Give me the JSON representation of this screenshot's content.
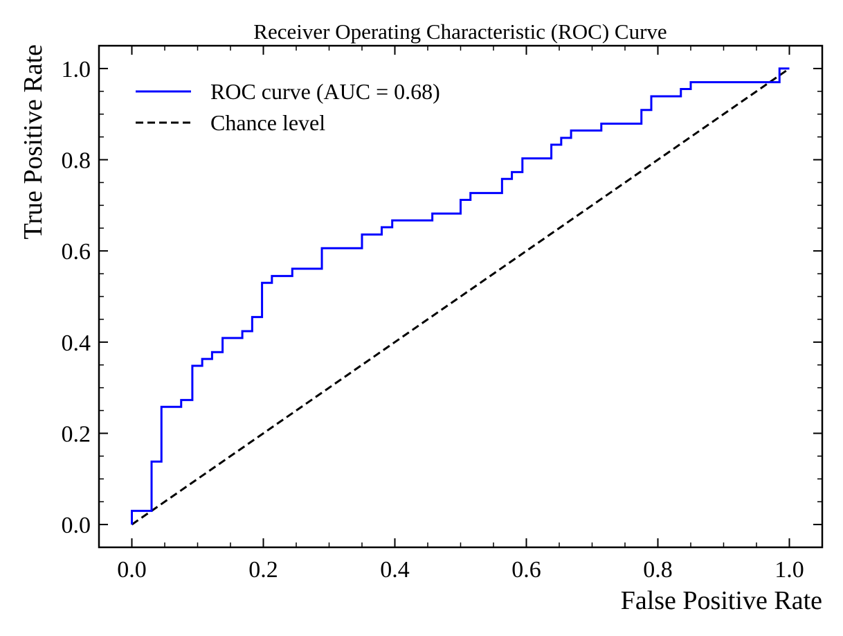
{
  "chart_data": {
    "type": "line",
    "title": "Receiver Operating Characteristic (ROC) Curve",
    "xlabel": "False Positive Rate",
    "ylabel": "True Positive Rate",
    "xlim": [
      -0.05,
      1.05
    ],
    "ylim": [
      -0.05,
      1.05
    ],
    "x_ticks": [
      0.0,
      0.2,
      0.4,
      0.6,
      0.8,
      1.0
    ],
    "y_ticks": [
      0.0,
      0.2,
      0.4,
      0.6,
      0.8,
      1.0
    ],
    "x_tick_labels": [
      "0.0",
      "0.2",
      "0.4",
      "0.6",
      "0.8",
      "1.0"
    ],
    "y_tick_labels": [
      "0.0",
      "0.2",
      "0.4",
      "0.6",
      "0.8",
      "1.0"
    ],
    "grid": false,
    "legend_position": "top-left",
    "series": [
      {
        "name": "ROC curve (AUC = 0.68)",
        "color": "#0000ff",
        "style": "solid",
        "x": [
          0.0,
          0.0,
          0.03,
          0.03,
          0.045,
          0.045,
          0.075,
          0.075,
          0.092,
          0.092,
          0.107,
          0.107,
          0.122,
          0.122,
          0.138,
          0.138,
          0.168,
          0.168,
          0.183,
          0.183,
          0.198,
          0.198,
          0.213,
          0.213,
          0.244,
          0.244,
          0.289,
          0.289,
          0.35,
          0.35,
          0.38,
          0.38,
          0.396,
          0.396,
          0.457,
          0.457,
          0.5,
          0.5,
          0.515,
          0.515,
          0.563,
          0.563,
          0.578,
          0.578,
          0.594,
          0.594,
          0.638,
          0.638,
          0.653,
          0.653,
          0.668,
          0.668,
          0.714,
          0.714,
          0.775,
          0.775,
          0.79,
          0.79,
          0.835,
          0.835,
          0.85,
          0.85,
          0.985,
          0.985,
          1.0
        ],
        "y": [
          0.0,
          0.03,
          0.03,
          0.138,
          0.138,
          0.258,
          0.258,
          0.273,
          0.273,
          0.348,
          0.348,
          0.363,
          0.363,
          0.378,
          0.378,
          0.409,
          0.409,
          0.424,
          0.424,
          0.455,
          0.455,
          0.53,
          0.53,
          0.545,
          0.545,
          0.561,
          0.561,
          0.606,
          0.606,
          0.636,
          0.636,
          0.652,
          0.652,
          0.667,
          0.667,
          0.682,
          0.682,
          0.712,
          0.712,
          0.727,
          0.727,
          0.758,
          0.758,
          0.773,
          0.773,
          0.803,
          0.803,
          0.833,
          0.833,
          0.848,
          0.848,
          0.864,
          0.864,
          0.879,
          0.879,
          0.909,
          0.909,
          0.939,
          0.939,
          0.955,
          0.955,
          0.97,
          0.97,
          1.0,
          1.0
        ]
      },
      {
        "name": "Chance level",
        "color": "#000000",
        "style": "dashed",
        "x": [
          0.0,
          1.0
        ],
        "y": [
          0.0,
          1.0
        ]
      }
    ]
  }
}
